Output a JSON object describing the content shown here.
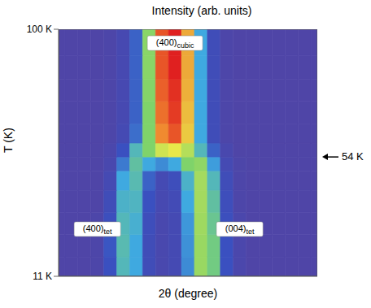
{
  "chart_data": {
    "type": "heatmap",
    "title": "Intensity (arb. units)",
    "x_label": "2θ (degree)",
    "y_label": "T (K)",
    "tick_labels": "y",
    "xlim": [
      0,
      20
    ],
    "ylim": [
      11,
      100
    ],
    "yticks": [
      {
        "value": 11,
        "label": "11 K"
      },
      {
        "value": 100,
        "label": "100 K"
      }
    ],
    "x": [
      0,
      1,
      2,
      3,
      4,
      5,
      6,
      7,
      8,
      9,
      10,
      11,
      12,
      13,
      14,
      15,
      16,
      17,
      18,
      19,
      20
    ],
    "y": [
      14,
      22,
      30,
      38,
      46,
      52,
      56,
      62,
      70,
      78,
      86,
      95
    ],
    "intensity_range": [
      0,
      1
    ],
    "cells": [
      [
        0.05,
        0.05,
        0.05,
        0.06,
        0.15,
        0.35,
        0.3,
        0.12,
        0.08,
        0.1,
        0.25,
        0.5,
        0.42,
        0.15,
        0.07,
        0.05,
        0.05,
        0.05,
        0.05,
        0.05,
        0.05
      ],
      [
        0.05,
        0.05,
        0.05,
        0.06,
        0.16,
        0.36,
        0.3,
        0.12,
        0.08,
        0.1,
        0.26,
        0.5,
        0.42,
        0.15,
        0.07,
        0.05,
        0.05,
        0.05,
        0.05,
        0.05,
        0.05
      ],
      [
        0.05,
        0.05,
        0.05,
        0.06,
        0.14,
        0.35,
        0.32,
        0.13,
        0.08,
        0.1,
        0.27,
        0.51,
        0.4,
        0.14,
        0.07,
        0.05,
        0.05,
        0.05,
        0.05,
        0.05,
        0.05
      ],
      [
        0.05,
        0.05,
        0.05,
        0.05,
        0.12,
        0.33,
        0.34,
        0.15,
        0.09,
        0.11,
        0.3,
        0.52,
        0.38,
        0.13,
        0.06,
        0.05,
        0.05,
        0.05,
        0.05,
        0.05,
        0.05
      ],
      [
        0.05,
        0.05,
        0.05,
        0.05,
        0.1,
        0.3,
        0.36,
        0.18,
        0.1,
        0.13,
        0.33,
        0.52,
        0.35,
        0.12,
        0.06,
        0.05,
        0.05,
        0.05,
        0.05,
        0.05,
        0.05
      ],
      [
        0.05,
        0.05,
        0.05,
        0.05,
        0.08,
        0.22,
        0.38,
        0.3,
        0.25,
        0.3,
        0.45,
        0.48,
        0.28,
        0.1,
        0.06,
        0.05,
        0.05,
        0.05,
        0.05,
        0.05,
        0.05
      ],
      [
        0.05,
        0.05,
        0.05,
        0.05,
        0.07,
        0.15,
        0.35,
        0.45,
        0.6,
        0.65,
        0.55,
        0.35,
        0.18,
        0.08,
        0.05,
        0.05,
        0.05,
        0.05,
        0.05,
        0.05,
        0.05
      ],
      [
        0.05,
        0.05,
        0.05,
        0.05,
        0.06,
        0.1,
        0.2,
        0.45,
        0.8,
        0.9,
        0.7,
        0.3,
        0.12,
        0.06,
        0.05,
        0.05,
        0.05,
        0.05,
        0.05,
        0.05,
        0.05
      ],
      [
        0.05,
        0.05,
        0.05,
        0.05,
        0.06,
        0.09,
        0.18,
        0.45,
        0.85,
        0.95,
        0.72,
        0.3,
        0.12,
        0.06,
        0.05,
        0.05,
        0.05,
        0.05,
        0.05,
        0.05,
        0.05
      ],
      [
        0.05,
        0.05,
        0.05,
        0.05,
        0.06,
        0.09,
        0.18,
        0.46,
        0.88,
        0.97,
        0.74,
        0.3,
        0.12,
        0.06,
        0.05,
        0.05,
        0.05,
        0.05,
        0.05,
        0.05,
        0.05
      ],
      [
        0.05,
        0.05,
        0.05,
        0.05,
        0.06,
        0.09,
        0.18,
        0.47,
        0.9,
        1,
        0.75,
        0.3,
        0.12,
        0.06,
        0.05,
        0.05,
        0.05,
        0.05,
        0.05,
        0.05,
        0.05
      ],
      [
        0.05,
        0.05,
        0.05,
        0.05,
        0.06,
        0.09,
        0.18,
        0.47,
        0.9,
        1,
        0.75,
        0.3,
        0.12,
        0.06,
        0.05,
        0.05,
        0.05,
        0.05,
        0.05,
        0.05,
        0.05
      ]
    ],
    "annotations": [
      {
        "text": "(400)",
        "subscript": "cubic",
        "x": 9,
        "y": 95
      },
      {
        "text": "(400)",
        "subscript": "tet",
        "x": 3,
        "y": 28
      },
      {
        "text": "(004)",
        "subscript": "tet",
        "x": 14,
        "y": 28
      },
      {
        "text": "54 K",
        "y": 54
      }
    ]
  }
}
